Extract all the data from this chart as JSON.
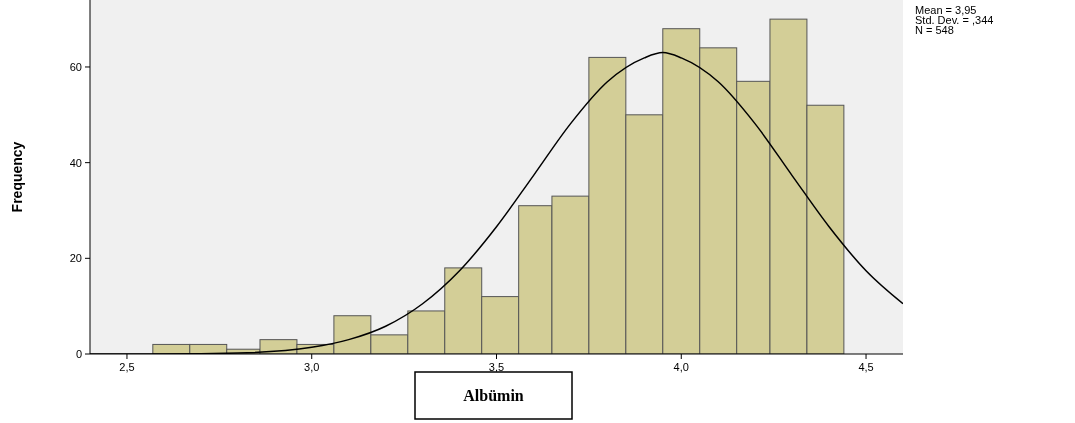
{
  "chart_data": {
    "type": "histogram",
    "bins": [
      2.57,
      2.67,
      2.77,
      2.86,
      2.96,
      3.06,
      3.16,
      3.26,
      3.36,
      3.46,
      3.56,
      3.65,
      3.75,
      3.85,
      3.95,
      4.05,
      4.15,
      4.24,
      4.34,
      4.44
    ],
    "values": [
      2,
      2,
      1,
      3,
      2,
      8,
      4,
      9,
      18,
      12,
      31,
      33,
      62,
      50,
      68,
      64,
      57,
      70,
      52
    ],
    "color": "#d3ce97",
    "series": [
      {
        "type": "line",
        "color": "#000000",
        "x": [
          2.4,
          2.6,
          2.8,
          3.0,
          3.1,
          3.2,
          3.3,
          3.4,
          3.5,
          3.6,
          3.7,
          3.8,
          3.9,
          3.95,
          4.0,
          4.1,
          4.2,
          4.3,
          4.4,
          4.5,
          4.6
        ],
        "values": [
          0,
          0,
          0.2,
          1.4,
          3,
          5.8,
          10.5,
          17.4,
          26.6,
          37.3,
          48.1,
          56.9,
          61.9,
          63,
          61.9,
          56.9,
          48.1,
          37.3,
          26.6,
          17.4,
          10.5
        ]
      }
    ],
    "xlabel": "Albümin",
    "ylabel": "Frequency",
    "xlim": [
      2.4,
      4.6
    ],
    "ylim": [
      0,
      74
    ],
    "xticks": [
      {
        "value": 2.5,
        "label": "2,5"
      },
      {
        "value": 3.0,
        "label": "3,0"
      },
      {
        "value": 3.5,
        "label": "3,5"
      },
      {
        "value": 4.0,
        "label": "4,0"
      },
      {
        "value": 4.5,
        "label": "4,5"
      }
    ],
    "yticks": [
      0,
      20,
      40,
      60
    ],
    "annotations": [
      "Mean = 3,95",
      "Std. Dev. = ,344",
      "N = 548"
    ]
  }
}
